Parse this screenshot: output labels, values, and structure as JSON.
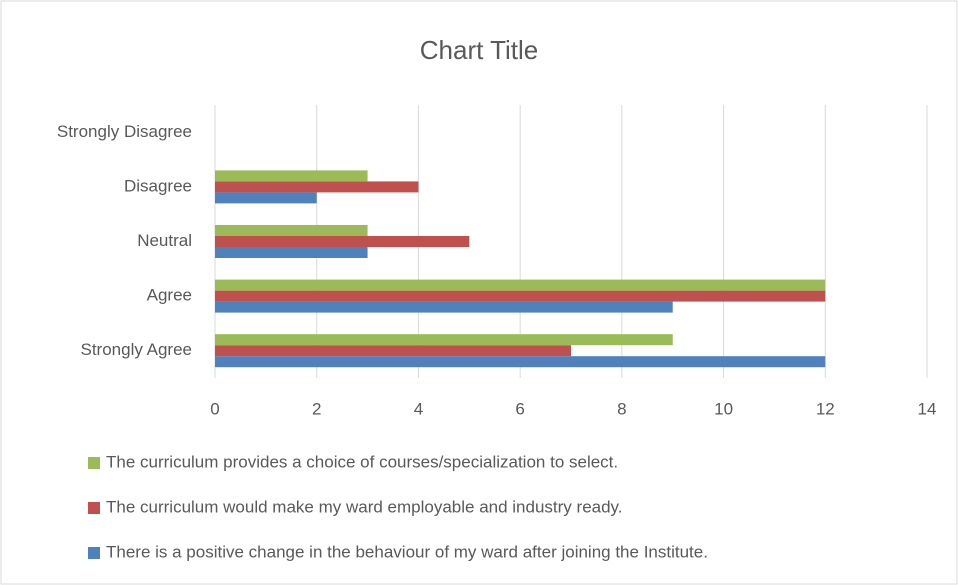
{
  "chart_data": {
    "type": "bar",
    "orientation": "horizontal",
    "title": "Chart Title",
    "categories": [
      "Strongly Agree",
      "Agree",
      "Neutral",
      "Disagree",
      "Strongly Disagree"
    ],
    "series": [
      {
        "name": "There is a positive change in the behaviour of my ward after joining the Institute.",
        "color": "#4f81bd",
        "values": [
          12,
          9,
          3,
          2,
          0
        ]
      },
      {
        "name": "The curriculum would make my ward employable and industry ready.",
        "color": "#c0504d",
        "values": [
          7,
          12,
          5,
          4,
          0
        ]
      },
      {
        "name": "The curriculum provides a choice of courses/specialization to select.",
        "color": "#9bbb59",
        "values": [
          9,
          12,
          3,
          3,
          0
        ]
      }
    ],
    "xlim": [
      0,
      14
    ],
    "xticks": [
      0,
      2,
      4,
      6,
      8,
      10,
      12,
      14
    ],
    "grid": true,
    "legend": "bottom"
  }
}
